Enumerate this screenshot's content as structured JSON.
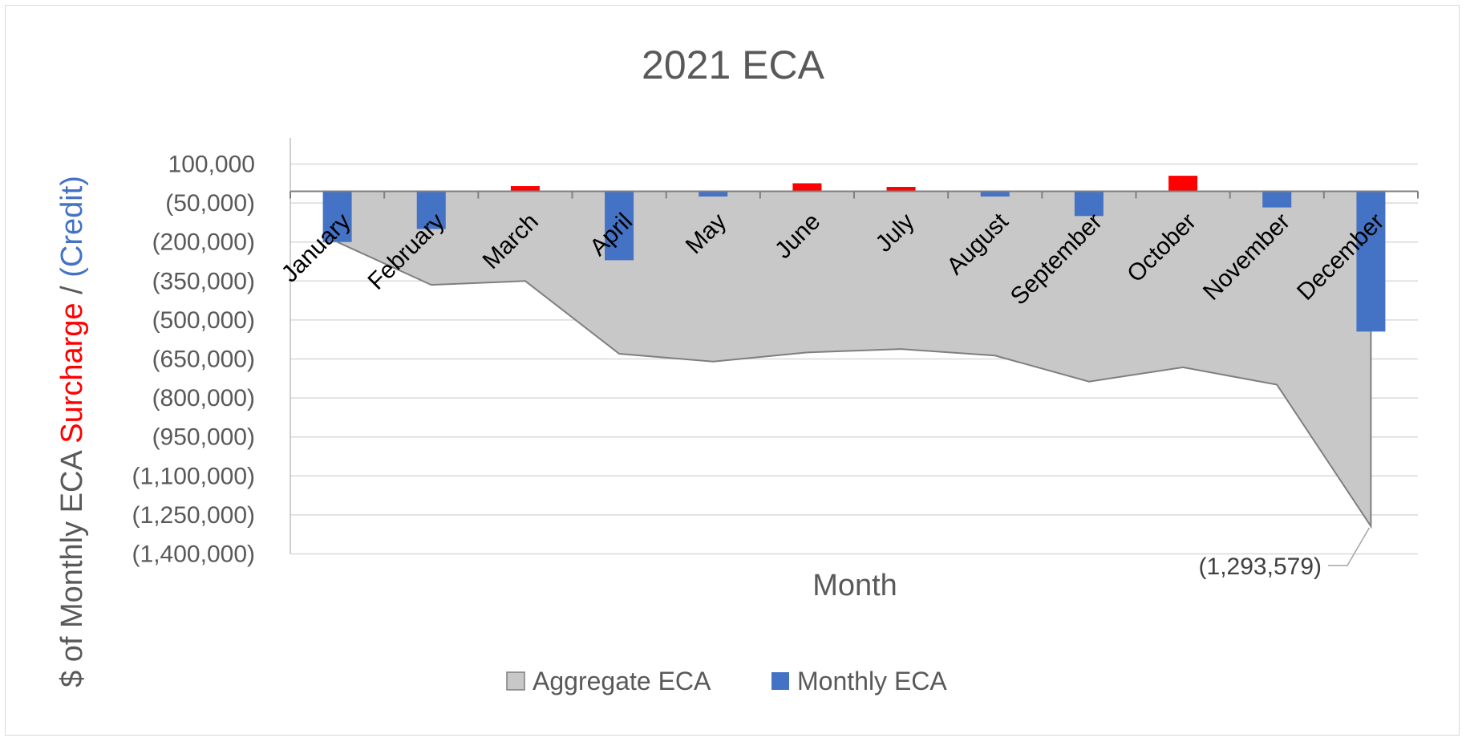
{
  "chart_data": {
    "type": "bar",
    "title": "2021 ECA",
    "xlabel": "Month",
    "ylabel_parts": [
      {
        "text": "$ of Monthly ECA ",
        "color": "#595959"
      },
      {
        "text": "Surcharge",
        "color": "#ff0000"
      },
      {
        "text": " / ",
        "color": "#595959"
      },
      {
        "text": "(Credit)",
        "color": "#4472c4"
      }
    ],
    "ylim": [
      -1400000,
      100000
    ],
    "y_ticks": [
      100000,
      -50000,
      -200000,
      -350000,
      -500000,
      -650000,
      -800000,
      -950000,
      -1100000,
      -1250000,
      -1400000
    ],
    "y_tick_labels": [
      "100,000",
      "(50,000)",
      "(200,000)",
      "(350,000)",
      "(500,000)",
      "(650,000)",
      "(800,000)",
      "(950,000)",
      "(1,100,000)",
      "(1,250,000)",
      "(1,400,000)"
    ],
    "categories": [
      "January",
      "February",
      "March",
      "April",
      "May",
      "June",
      "July",
      "August",
      "September",
      "October",
      "November",
      "December"
    ],
    "series": [
      {
        "name": "Aggregate ECA",
        "kind": "area",
        "color": "#c8c8c8",
        "values": [
          -200000,
          -365000,
          -350000,
          -630000,
          -660000,
          -625000,
          -612000,
          -637000,
          -737000,
          -682000,
          -749000,
          -1293579
        ]
      },
      {
        "name": "Monthly ECA",
        "kind": "bar",
        "color": "#4472c4",
        "negative_color": "#4472c4",
        "positive_color": "#ff0000",
        "values": [
          -200000,
          -150000,
          15000,
          -270000,
          -25000,
          26000,
          12000,
          -25000,
          -100000,
          55000,
          -67000,
          -544579
        ]
      }
    ],
    "annotations": [
      {
        "text": "(1,293,579)",
        "category": "December",
        "series": "Aggregate ECA"
      }
    ],
    "legend": {
      "position": "bottom",
      "items": [
        "Aggregate ECA",
        "Monthly ECA"
      ]
    },
    "grid": true
  }
}
